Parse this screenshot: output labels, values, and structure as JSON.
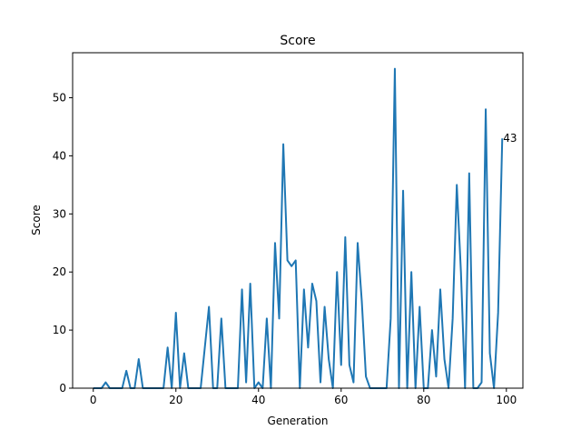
{
  "chart_data": {
    "type": "line",
    "title": "Score",
    "xlabel": "Generation",
    "ylabel": "Score",
    "xlim": [
      -5,
      104
    ],
    "ylim": [
      0,
      57.75
    ],
    "xticks": [
      0,
      20,
      40,
      60,
      80,
      100
    ],
    "yticks": [
      0,
      10,
      20,
      30,
      40,
      50
    ],
    "grid": false,
    "line_color": "#1f77b4",
    "end_label": "43",
    "x": [
      0,
      1,
      2,
      3,
      4,
      5,
      6,
      7,
      8,
      9,
      10,
      11,
      12,
      13,
      14,
      15,
      16,
      17,
      18,
      19,
      20,
      21,
      22,
      23,
      24,
      25,
      26,
      27,
      28,
      29,
      30,
      31,
      32,
      33,
      34,
      35,
      36,
      37,
      38,
      39,
      40,
      41,
      42,
      43,
      44,
      45,
      46,
      47,
      48,
      49,
      50,
      51,
      52,
      53,
      54,
      55,
      56,
      57,
      58,
      59,
      60,
      61,
      62,
      63,
      64,
      65,
      66,
      67,
      68,
      69,
      70,
      71,
      72,
      73,
      74,
      75,
      76,
      77,
      78,
      79,
      80,
      81,
      82,
      83,
      84,
      85,
      86,
      87,
      88,
      89,
      90,
      91,
      92,
      93,
      94,
      95,
      96,
      97,
      98,
      99
    ],
    "series": [
      {
        "values": [
          0,
          0,
          0,
          1,
          0,
          0,
          0,
          0,
          3,
          0,
          0,
          5,
          0,
          0,
          0,
          0,
          0,
          0,
          7,
          0,
          13,
          0,
          6,
          0,
          0,
          0,
          0,
          7,
          14,
          0,
          0,
          12,
          0,
          0,
          0,
          0,
          17,
          1,
          18,
          0,
          1,
          0,
          12,
          0,
          25,
          12,
          42,
          22,
          21,
          22,
          0,
          17,
          7,
          18,
          15,
          1,
          14,
          5,
          0,
          20,
          4,
          26,
          4,
          1,
          25,
          15,
          2,
          0,
          0,
          0,
          0,
          0,
          12,
          55,
          0,
          34,
          0,
          20,
          0,
          14,
          0,
          0,
          10,
          2,
          17,
          5,
          0,
          12,
          35,
          20,
          0,
          37,
          0,
          0,
          1,
          48,
          6,
          0,
          13,
          43
        ]
      }
    ]
  }
}
